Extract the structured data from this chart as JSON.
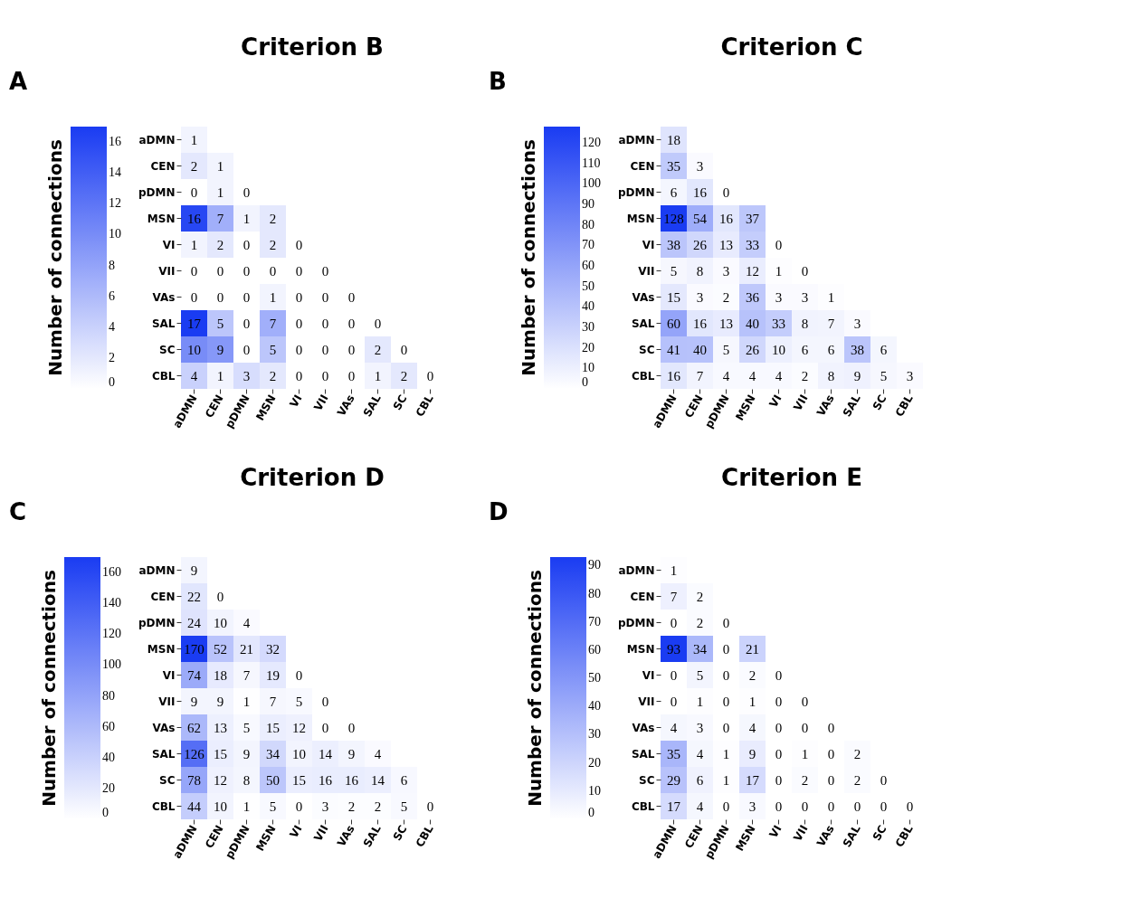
{
  "chart_data": [
    {
      "type": "heatmap",
      "title": "Criterion B",
      "clabel": "Number of connections",
      "annotations": [
        "A"
      ],
      "data_labels": true,
      "clim": [
        0,
        17
      ],
      "cticks": [
        0,
        2,
        4,
        6,
        8,
        10,
        12,
        14,
        16
      ],
      "categories": [
        "aDMN",
        "CEN",
        "pDMN",
        "MSN",
        "VI",
        "VII",
        "VAs",
        "SAL",
        "SC",
        "CBL"
      ],
      "y_categories": [
        "aDMN",
        "CEN",
        "pDMN",
        "MSN",
        "VI",
        "VII",
        "VAs",
        "SAL",
        "SC",
        "CBL"
      ],
      "cells": [
        [
          1,
          null,
          null,
          null,
          null,
          null,
          null,
          null,
          null,
          null
        ],
        [
          2,
          1,
          null,
          null,
          null,
          null,
          null,
          null,
          null,
          null
        ],
        [
          0,
          1,
          0,
          null,
          null,
          null,
          null,
          null,
          null,
          null
        ],
        [
          16,
          7,
          1,
          2,
          null,
          null,
          null,
          null,
          null,
          null
        ],
        [
          1,
          2,
          0,
          2,
          0,
          null,
          null,
          null,
          null,
          null
        ],
        [
          0,
          0,
          0,
          0,
          0,
          0,
          null,
          null,
          null,
          null
        ],
        [
          0,
          0,
          0,
          1,
          0,
          0,
          0,
          null,
          null,
          null
        ],
        [
          17,
          5,
          0,
          7,
          0,
          0,
          0,
          0,
          null,
          null
        ],
        [
          10,
          9,
          0,
          5,
          0,
          0,
          0,
          2,
          0,
          null
        ],
        [
          4,
          1,
          3,
          2,
          0,
          0,
          0,
          1,
          2,
          0
        ]
      ]
    },
    {
      "type": "heatmap",
      "title": "Criterion C",
      "clabel": "Number of connections",
      "annotations": [
        "B"
      ],
      "data_labels": true,
      "clim": [
        0,
        128
      ],
      "cticks": [
        0,
        10,
        20,
        30,
        40,
        50,
        60,
        70,
        80,
        90,
        100,
        110,
        120
      ],
      "categories": [
        "aDMN",
        "CEN",
        "pDMN",
        "MSN",
        "VI",
        "VII",
        "VAs",
        "SAL",
        "SC",
        "CBL"
      ],
      "y_categories": [
        "aDMN",
        "CEN",
        "pDMN",
        "MSN",
        "VI",
        "VII",
        "VAs",
        "SAL",
        "SC",
        "CBL"
      ],
      "cells": [
        [
          18,
          null,
          null,
          null,
          null,
          null,
          null,
          null,
          null,
          null
        ],
        [
          35,
          3,
          null,
          null,
          null,
          null,
          null,
          null,
          null,
          null
        ],
        [
          6,
          16,
          0,
          null,
          null,
          null,
          null,
          null,
          null,
          null
        ],
        [
          128,
          54,
          16,
          37,
          null,
          null,
          null,
          null,
          null,
          null
        ],
        [
          38,
          26,
          13,
          33,
          0,
          null,
          null,
          null,
          null,
          null
        ],
        [
          5,
          8,
          3,
          12,
          1,
          0,
          null,
          null,
          null,
          null
        ],
        [
          15,
          3,
          2,
          36,
          3,
          3,
          1,
          null,
          null,
          null
        ],
        [
          60,
          16,
          13,
          40,
          33,
          8,
          7,
          3,
          null,
          null
        ],
        [
          41,
          40,
          5,
          26,
          10,
          6,
          6,
          38,
          6,
          null
        ],
        [
          16,
          7,
          4,
          4,
          4,
          2,
          8,
          9,
          5,
          3
        ]
      ]
    },
    {
      "type": "heatmap",
      "title": "Criterion D",
      "clabel": "Number of connections",
      "annotations": [
        "C"
      ],
      "data_labels": true,
      "clim": [
        0,
        170
      ],
      "cticks": [
        0,
        20,
        40,
        60,
        80,
        100,
        120,
        140,
        160
      ],
      "categories": [
        "aDMN",
        "CEN",
        "pDMN",
        "MSN",
        "VI",
        "VII",
        "VAs",
        "SAL",
        "SC",
        "CBL"
      ],
      "y_categories": [
        "aDMN",
        "CEN",
        "pDMN",
        "MSN",
        "VI",
        "VII",
        "VAs",
        "SAL",
        "SC",
        "CBL"
      ],
      "cells": [
        [
          9,
          null,
          null,
          null,
          null,
          null,
          null,
          null,
          null,
          null
        ],
        [
          22,
          0,
          null,
          null,
          null,
          null,
          null,
          null,
          null,
          null
        ],
        [
          24,
          10,
          4,
          null,
          null,
          null,
          null,
          null,
          null,
          null
        ],
        [
          170,
          52,
          21,
          32,
          null,
          null,
          null,
          null,
          null,
          null
        ],
        [
          74,
          18,
          7,
          19,
          0,
          null,
          null,
          null,
          null,
          null
        ],
        [
          9,
          9,
          1,
          7,
          5,
          0,
          null,
          null,
          null,
          null
        ],
        [
          62,
          13,
          5,
          15,
          12,
          0,
          0,
          null,
          null,
          null
        ],
        [
          126,
          15,
          9,
          34,
          10,
          14,
          9,
          4,
          null,
          null
        ],
        [
          78,
          12,
          8,
          50,
          15,
          16,
          16,
          14,
          6,
          null
        ],
        [
          44,
          10,
          1,
          5,
          0,
          3,
          2,
          2,
          5,
          0
        ]
      ]
    },
    {
      "type": "heatmap",
      "title": "Criterion E",
      "clabel": "Number of connections",
      "annotations": [
        "D"
      ],
      "data_labels": true,
      "clim": [
        0,
        93
      ],
      "cticks": [
        0,
        10,
        20,
        30,
        40,
        50,
        60,
        70,
        80,
        90
      ],
      "categories": [
        "aDMN",
        "CEN",
        "pDMN",
        "MSN",
        "VI",
        "VII",
        "VAs",
        "SAL",
        "SC",
        "CBL"
      ],
      "y_categories": [
        "aDMN",
        "CEN",
        "pDMN",
        "MSN",
        "VI",
        "VII",
        "VAs",
        "SAL",
        "SC",
        "CBL"
      ],
      "cells": [
        [
          1,
          null,
          null,
          null,
          null,
          null,
          null,
          null,
          null,
          null
        ],
        [
          7,
          2,
          null,
          null,
          null,
          null,
          null,
          null,
          null,
          null
        ],
        [
          0,
          2,
          0,
          null,
          null,
          null,
          null,
          null,
          null,
          null
        ],
        [
          93,
          34,
          0,
          21,
          null,
          null,
          null,
          null,
          null,
          null
        ],
        [
          0,
          5,
          0,
          2,
          0,
          null,
          null,
          null,
          null,
          null
        ],
        [
          0,
          1,
          0,
          1,
          0,
          0,
          null,
          null,
          null,
          null
        ],
        [
          4,
          3,
          0,
          4,
          0,
          0,
          0,
          null,
          null,
          null
        ],
        [
          35,
          4,
          1,
          9,
          0,
          1,
          0,
          2,
          null,
          null
        ],
        [
          29,
          6,
          1,
          17,
          0,
          2,
          0,
          2,
          0,
          null
        ],
        [
          17,
          4,
          0,
          3,
          0,
          0,
          0,
          0,
          0,
          0
        ]
      ]
    }
  ]
}
